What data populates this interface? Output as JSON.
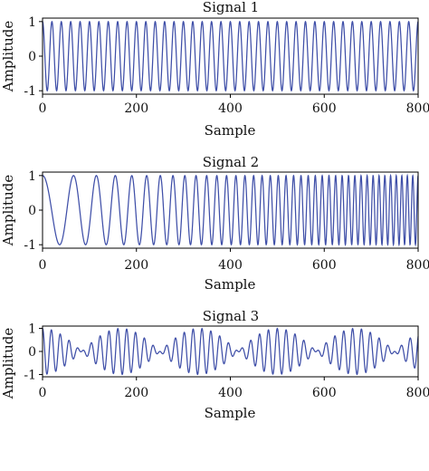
{
  "colors": {
    "line": "#3f4fa8"
  },
  "chart_data": [
    {
      "type": "line",
      "title": "Signal 1",
      "xlabel": "Sample",
      "ylabel": "Amplitude",
      "xlim": [
        0,
        800
      ],
      "ylim": [
        -1.1,
        1.1
      ],
      "x_ticks": [
        "0",
        "200",
        "400",
        "600",
        "800"
      ],
      "y_ticks": [
        "1",
        "0",
        "-1"
      ],
      "series": [
        {
          "function": "cos",
          "cycles_per_sample": 0.05,
          "amplitude": 1,
          "n_samples": 800
        }
      ]
    },
    {
      "type": "line",
      "title": "Signal 2",
      "xlabel": "Sample",
      "ylabel": "Amplitude",
      "xlim": [
        0,
        800
      ],
      "ylim": [
        -1.1,
        1.1
      ],
      "x_ticks": [
        "0",
        "200",
        "400",
        "600",
        "800"
      ],
      "y_ticks": [
        "1",
        "0",
        "-1"
      ],
      "series": [
        {
          "function": "chirp",
          "start_cycles_per_sample": 0.012,
          "end_cycles_per_sample": 0.088,
          "amplitude": 1,
          "n_samples": 800
        }
      ]
    },
    {
      "type": "line",
      "title": "Signal 3",
      "xlabel": "Sample",
      "ylabel": "Amplitude",
      "xlim": [
        0,
        800
      ],
      "ylim": [
        -1.1,
        1.1
      ],
      "x_ticks": [
        "0",
        "200",
        "400",
        "600",
        "800"
      ],
      "y_ticks": [
        "1",
        "0",
        "-1"
      ],
      "series": [
        {
          "function": "two-tone",
          "cycles_per_sample": [
            0.05,
            0.056
          ],
          "amplitude": 1,
          "n_samples": 800
        }
      ]
    }
  ]
}
